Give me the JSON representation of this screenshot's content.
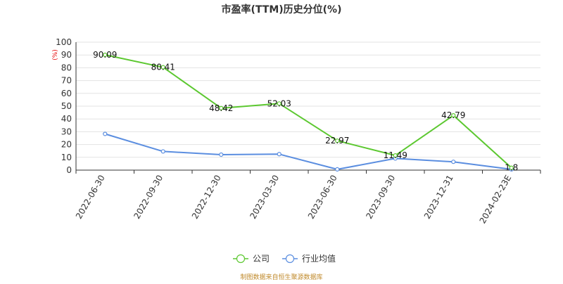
{
  "chart_data": {
    "type": "line",
    "title": "市盈率(TTM)历史分位(%)",
    "unit": "(%)",
    "categories": [
      "2022-06-30",
      "2022-09-30",
      "2022-12-30",
      "2023-03-30",
      "2023-06-30",
      "2023-09-30",
      "2023-12-31",
      "2024-02-23E"
    ],
    "ylim": [
      0,
      100
    ],
    "yticks": [
      0,
      10,
      20,
      30,
      40,
      50,
      60,
      70,
      80,
      90,
      100
    ],
    "grid": true,
    "legend_position": "bottom-center",
    "series": [
      {
        "name": "公司",
        "color": "#5cc830",
        "values": [
          90.09,
          80.41,
          48.42,
          52.03,
          22.97,
          11.49,
          42.79,
          1.8
        ],
        "labels": [
          "90.09",
          "80.41",
          "48.42",
          "52.03",
          "22.97",
          "11.49",
          "42.79",
          "1.8"
        ]
      },
      {
        "name": "行业均值",
        "color": "#5b8ee0",
        "values": [
          28.3,
          14.6,
          12.1,
          12.5,
          0.6,
          9.1,
          6.5,
          0.6
        ]
      }
    ]
  },
  "source_text": "制图数据来自恒生聚源数据库"
}
